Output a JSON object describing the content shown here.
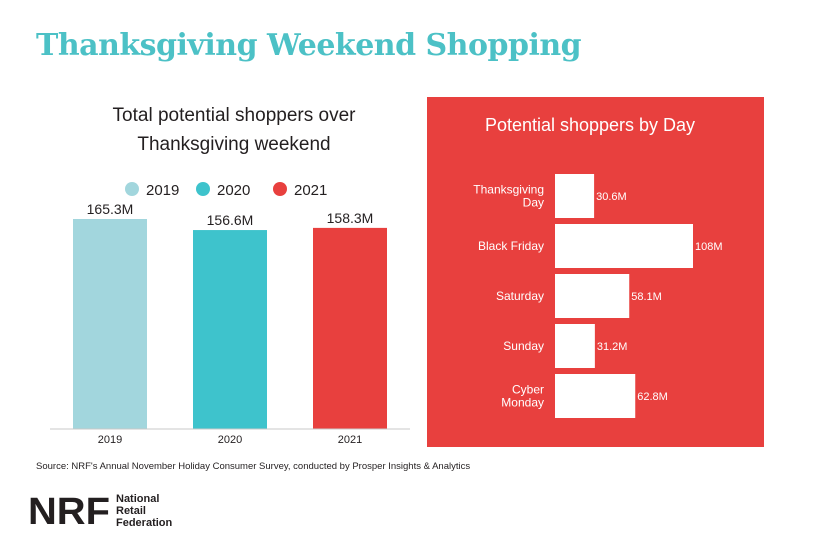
{
  "page": {
    "title": "Thanksgiving Weekend Shopping",
    "source": "Source: NRF's Annual November Holiday Consumer Survey, conducted by Prosper Insights & Analytics",
    "logo": {
      "mark": "NRF",
      "lines": [
        "National",
        "Retail",
        "Federation"
      ]
    }
  },
  "chart_data": [
    {
      "type": "bar",
      "title_lines": [
        "Total potential shoppers over",
        "Thanksgiving weekend"
      ],
      "categories": [
        "2019",
        "2020",
        "2021"
      ],
      "values": [
        165.3,
        156.6,
        158.3
      ],
      "value_labels": [
        "165.3M",
        "156.6M",
        "158.3M"
      ],
      "colors": [
        "#a2d6dd",
        "#3ec3cc",
        "#e8403e"
      ],
      "legend": [
        "2019",
        "2020",
        "2021"
      ],
      "legend_position": "top",
      "ylim": [
        0,
        175
      ],
      "grid": false
    },
    {
      "type": "bar",
      "orientation": "horizontal",
      "title": "Potential shoppers by Day",
      "categories": [
        [
          "Thanksgiving",
          "Day"
        ],
        [
          "Black Friday"
        ],
        [
          "Saturday"
        ],
        [
          "Sunday"
        ],
        [
          "Cyber",
          "Monday"
        ]
      ],
      "values": [
        30.6,
        108,
        58.1,
        31.2,
        62.8
      ],
      "value_labels": [
        "30.6M",
        "108M",
        "58.1M",
        "31.2M",
        "62.8M"
      ],
      "bar_color": "#ffffff",
      "background": "#e8403e",
      "xlim": [
        0,
        108
      ],
      "grid": false
    }
  ]
}
